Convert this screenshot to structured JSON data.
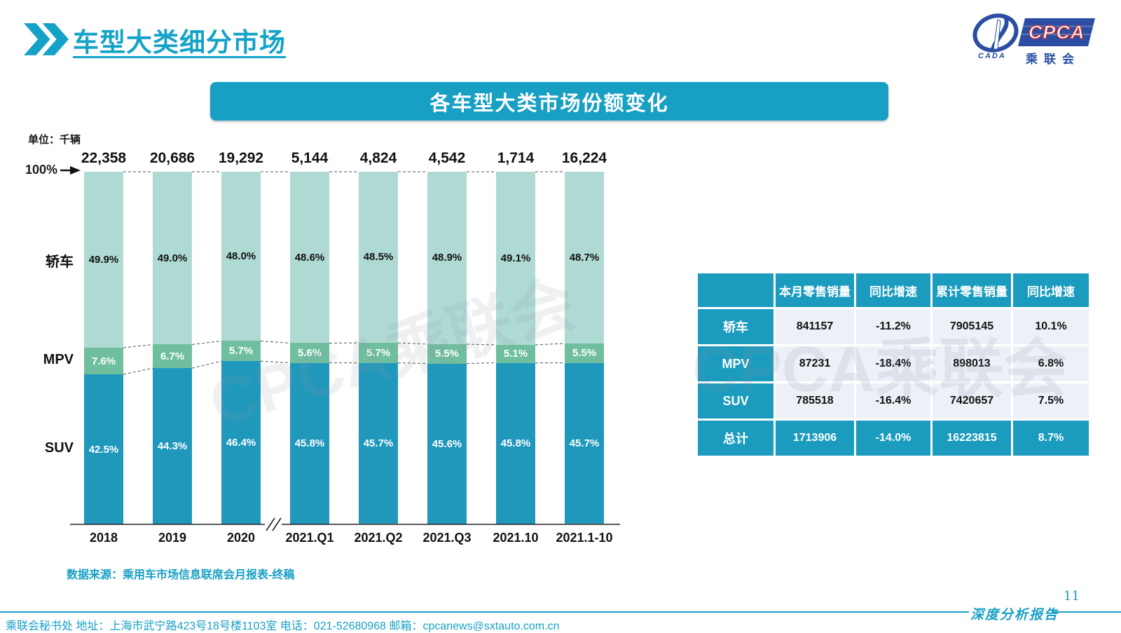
{
  "page": {
    "title": "车型大类细分市场",
    "page_number": "11",
    "report_label": "深度分析报告"
  },
  "logo": {
    "cpca": "CPCA",
    "cada": "CADA",
    "subtitle": "乘联会"
  },
  "banner": {
    "title": "各车型大类市场份额变化"
  },
  "chart": {
    "unit_label": "单位：千辆",
    "axis_100_label": "100%",
    "watermark": "CPCA乘联会"
  },
  "chart_data": {
    "type": "bar",
    "stacked": true,
    "unit": "千辆",
    "categories": [
      "2018",
      "2019",
      "2020",
      "2021.Q1",
      "2021.Q2",
      "2021.Q3",
      "2021.10",
      "2021.1-10"
    ],
    "totals": [
      "22,358",
      "20,686",
      "19,292",
      "5,144",
      "4,824",
      "4,542",
      "1,714",
      "16,224"
    ],
    "axis_break_after": "2020",
    "ylim": [
      0,
      100
    ],
    "series": [
      {
        "name": "轿车",
        "values": [
          49.9,
          49.0,
          48.0,
          48.6,
          48.5,
          48.9,
          49.1,
          48.7
        ],
        "color": "#aedad3",
        "label_color": "#111111"
      },
      {
        "name": "MPV",
        "values": [
          7.6,
          6.7,
          5.7,
          5.6,
          5.7,
          5.5,
          5.1,
          5.5
        ],
        "color": "#6fbf9f",
        "label_color": "#ffffff"
      },
      {
        "name": "SUV",
        "values": [
          42.5,
          44.3,
          46.4,
          45.8,
          45.7,
          45.6,
          45.8,
          45.7
        ],
        "color": "#2098bc",
        "label_color": "#ffffff"
      }
    ]
  },
  "table": {
    "headers": [
      "",
      "本月零售销量",
      "同比增速",
      "累计零售销量",
      "同比增速"
    ],
    "rows": [
      {
        "label": "轿车",
        "cells": [
          "841157",
          "-11.2%",
          "7905145",
          "10.1%"
        ],
        "total": false
      },
      {
        "label": "MPV",
        "cells": [
          "87231",
          "-18.4%",
          "898013",
          "6.8%"
        ],
        "total": false
      },
      {
        "label": "SUV",
        "cells": [
          "785518",
          "-16.4%",
          "7420657",
          "7.5%"
        ],
        "total": false
      },
      {
        "label": "总计",
        "cells": [
          "1713906",
          "-14.0%",
          "16223815",
          "8.7%"
        ],
        "total": true
      }
    ]
  },
  "source": "数据来源：乘用车市场信息联席会月报表-终稿",
  "footer": "乘联会秘书处   地址：上海市武宁路423号18号楼1103室  电话：021-52680968   邮箱：cpcanews@sxtauto.com.cn",
  "colors": {
    "accent": "#189fc4",
    "table_teal": "#1b9cbe",
    "table_light": "#edf1f7",
    "logo_navy": "#2b4ea3",
    "logo_red": "#d03030",
    "sedan": "#aedad3",
    "mpv": "#6fbf9f",
    "suv": "#2098bc"
  }
}
